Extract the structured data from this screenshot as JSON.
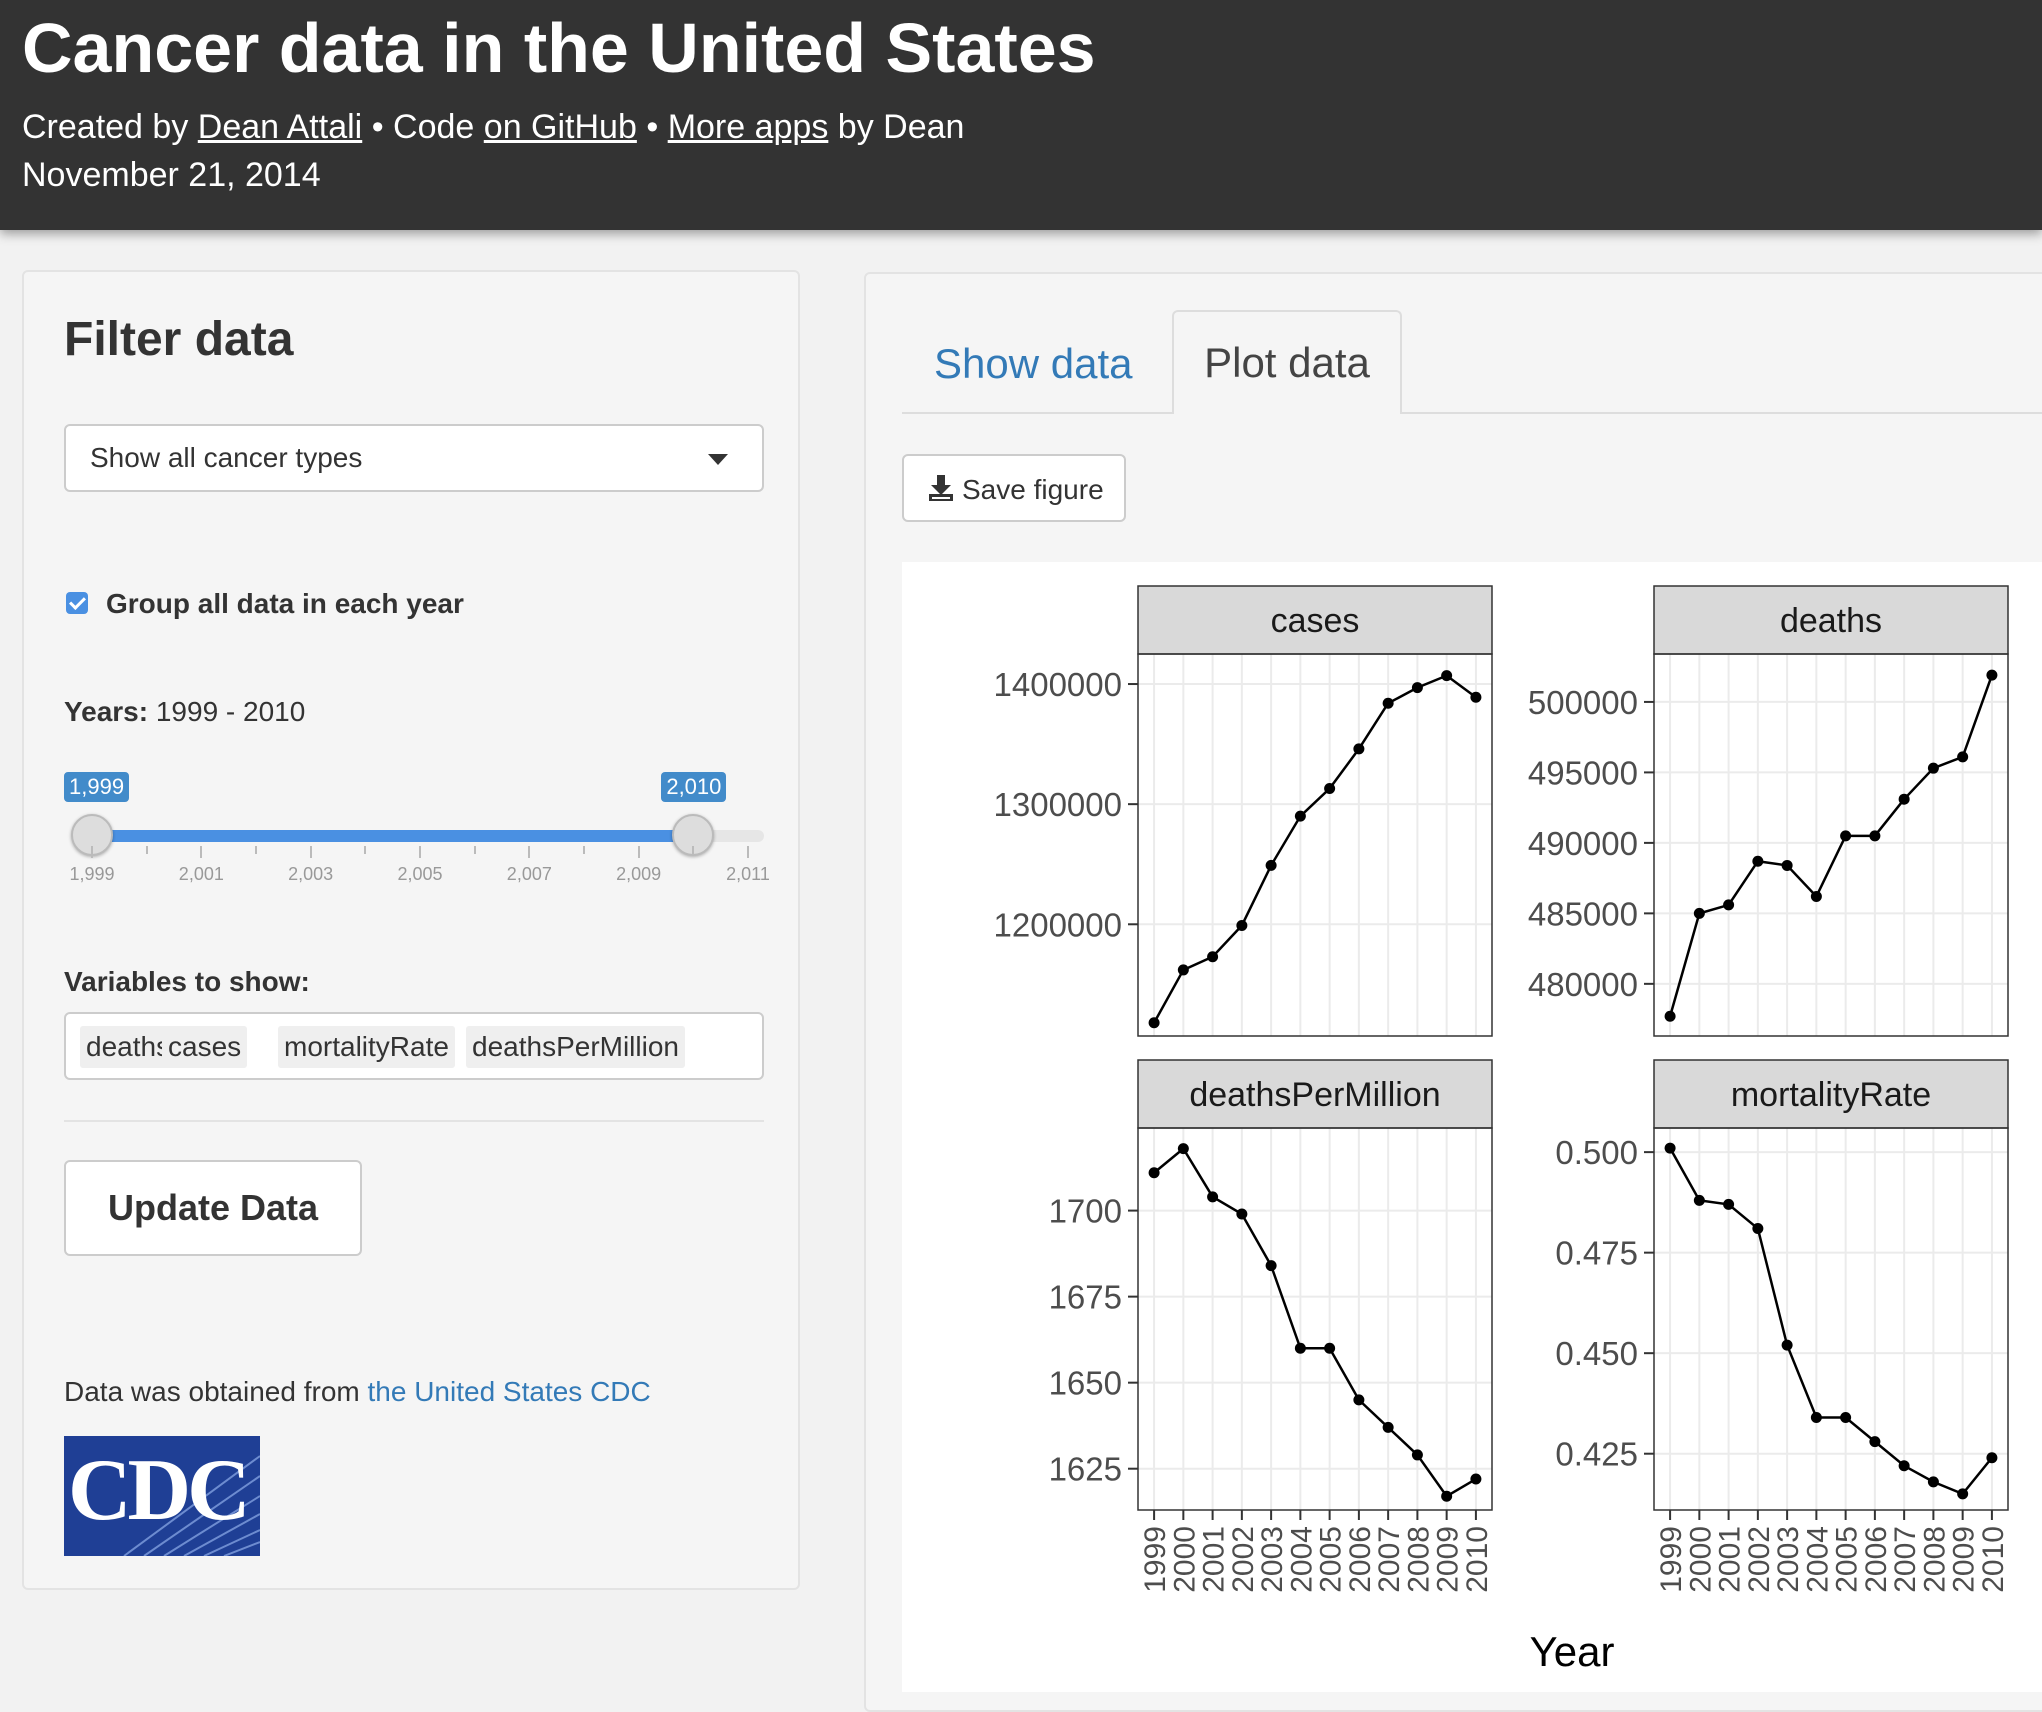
{
  "header": {
    "title": "Cancer data in the United States",
    "created_by_prefix": "Created by",
    "author_link": "Dean Attali",
    "bullet": "•",
    "code_prefix": "Code",
    "github_link": "on GitHub",
    "more_apps_link": "More apps",
    "more_apps_suffix": "by Dean",
    "date": "November 21, 2014"
  },
  "sidebar": {
    "heading": "Filter data",
    "cancer_type_select": "Show all cancer types",
    "group_checkbox_label": "Group all data in each year",
    "group_checked": true,
    "years_label": "Years:",
    "years_value": "1999 - 2010",
    "slider": {
      "from_label": "1,999",
      "to_label": "2,010",
      "tick_labels": [
        "1,999",
        "2,001",
        "2,003",
        "2,005",
        "2,007",
        "2,009",
        "2,011"
      ],
      "min": 1999,
      "max": 2011,
      "from": 1999,
      "to": 2010
    },
    "variables_label": "Variables to show:",
    "variables": [
      "deaths",
      "cases",
      "mortalityRate",
      "deathsPerMillion"
    ],
    "update_button": "Update Data",
    "source_prefix": "Data was obtained from",
    "source_link": "the United States CDC",
    "logo_text": "CDC"
  },
  "tabs": [
    {
      "label": "Show data",
      "active": false
    },
    {
      "label": "Plot data",
      "active": true
    }
  ],
  "save_button": "Save figure",
  "icons": {
    "select_caret": "caret-down-icon",
    "save": "download-icon",
    "checkbox": "check-icon"
  },
  "colors": {
    "header_bg": "#333333",
    "accent": "#428bca",
    "link": "#337ab7",
    "logo_bg": "#1f3f95"
  },
  "chart_data": [
    {
      "type": "line",
      "title": "cases",
      "x": [
        1999,
        2000,
        2001,
        2002,
        2003,
        2004,
        2005,
        2006,
        2007,
        2008,
        2009,
        2010
      ],
      "values": [
        1118000,
        1162000,
        1173000,
        1199000,
        1249000,
        1290000,
        1313000,
        1346000,
        1384000,
        1397000,
        1407000,
        1389000
      ],
      "yticks": [
        1200000,
        1300000,
        1400000
      ],
      "ylim": [
        1107000,
        1425000
      ],
      "xlabel": "Year"
    },
    {
      "type": "line",
      "title": "deaths",
      "x": [
        1999,
        2000,
        2001,
        2002,
        2003,
        2004,
        2005,
        2006,
        2007,
        2008,
        2009,
        2010
      ],
      "values": [
        477700,
        485000,
        485600,
        488700,
        488400,
        486200,
        490500,
        490500,
        493100,
        495300,
        496100,
        501900
      ],
      "yticks": [
        480000,
        485000,
        490000,
        495000,
        500000
      ],
      "ylim": [
        476300,
        503400
      ],
      "xlabel": "Year"
    },
    {
      "type": "line",
      "title": "deathsPerMillion",
      "x": [
        1999,
        2000,
        2001,
        2002,
        2003,
        2004,
        2005,
        2006,
        2007,
        2008,
        2009,
        2010
      ],
      "values": [
        1711,
        1718,
        1704,
        1699,
        1684,
        1660,
        1660,
        1645,
        1637,
        1629,
        1617,
        1622
      ],
      "yticks": [
        1625,
        1650,
        1675,
        1700
      ],
      "ylim": [
        1613,
        1724
      ],
      "xlabel": "Year"
    },
    {
      "type": "line",
      "title": "mortalityRate",
      "x": [
        1999,
        2000,
        2001,
        2002,
        2003,
        2004,
        2005,
        2006,
        2007,
        2008,
        2009,
        2010
      ],
      "values": [
        0.501,
        0.488,
        0.487,
        0.481,
        0.452,
        0.434,
        0.434,
        0.428,
        0.422,
        0.418,
        0.415,
        0.424
      ],
      "yticks": [
        0.425,
        0.45,
        0.475,
        0.5
      ],
      "ytick_labels": [
        "0.425",
        "0.450",
        "0.475",
        "0.500"
      ],
      "ylim": [
        0.411,
        0.506
      ],
      "xlabel": "Year"
    }
  ]
}
